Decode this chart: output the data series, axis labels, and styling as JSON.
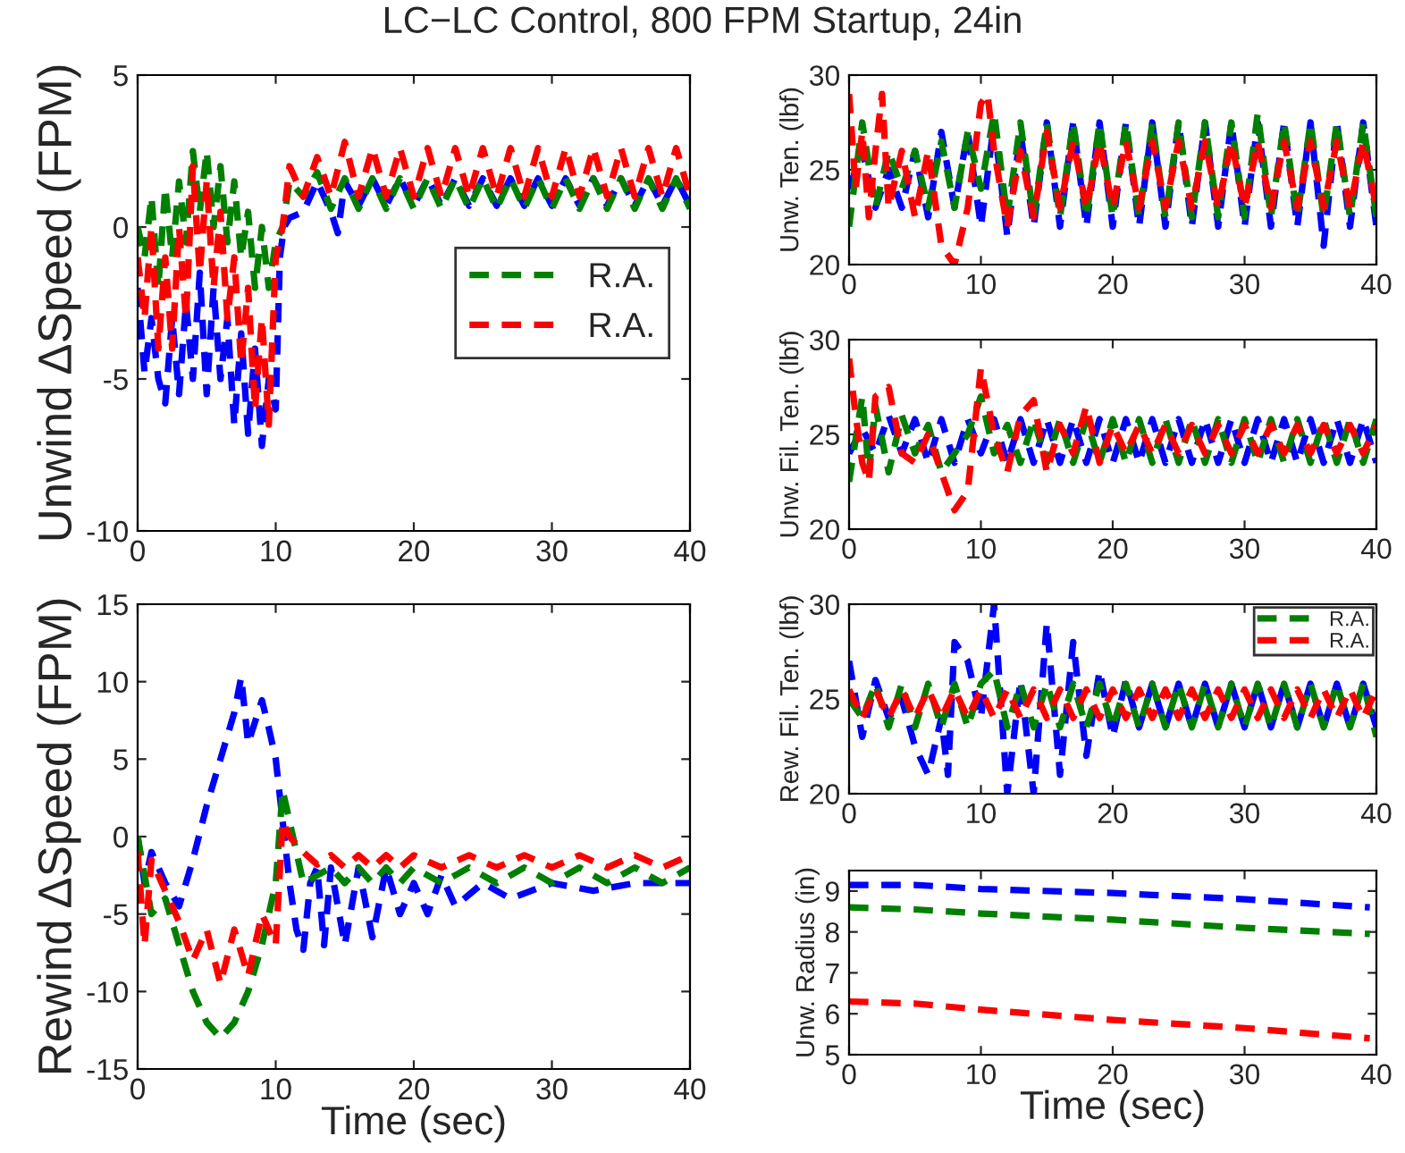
{
  "chart_data": [
    {
      "type": "line",
      "title": "LC−LC Control, 800 FPM Startup, 24in",
      "ylabel": "Unwind ΔSpeed (FPM)",
      "xlim": [
        0,
        40
      ],
      "xticks": [
        0,
        10,
        20,
        30,
        40
      ],
      "ylim": [
        -10,
        5
      ],
      "yticks": [
        -10,
        -5,
        0,
        5
      ],
      "grid": false,
      "legend": "right",
      "line_style": "dashed",
      "series": [
        {
          "color": "#0000ff",
          "x": [
            0,
            0.5,
            1,
            1.5,
            2,
            2.5,
            3,
            3.5,
            4,
            4.5,
            5,
            5.5,
            6,
            6.5,
            7,
            7.5,
            8,
            8.5,
            9,
            9.5,
            10,
            10.3,
            10.6,
            11,
            12,
            13,
            14,
            14.5,
            15,
            16,
            17,
            18,
            19,
            20,
            21,
            22,
            23,
            24,
            25,
            26,
            27,
            28,
            29,
            30,
            31,
            32,
            33,
            34,
            35,
            36,
            37,
            38,
            39,
            40
          ],
          "values": [
            -2,
            -4.8,
            -3,
            -5,
            -5.8,
            -3,
            -5.5,
            -2.5,
            -5,
            -1.5,
            -5.5,
            -2,
            -5,
            -3,
            -6.5,
            -3.5,
            -6.8,
            -4,
            -7.2,
            -5,
            -6,
            -1,
            0,
            0.3,
            0.5,
            1.5,
            0.5,
            -0.2,
            1.5,
            0.7,
            1.6,
            0.7,
            1.6,
            0.7,
            1.6,
            0.7,
            1.6,
            0.7,
            1.6,
            0.7,
            1.6,
            0.7,
            1.6,
            0.7,
            1.6,
            0.7,
            1.6,
            0.7,
            1.6,
            0.7,
            1.6,
            0.7,
            1.6,
            0.7
          ]
        },
        {
          "name": "R.A.",
          "color": "#008000",
          "x": [
            0,
            0.5,
            1,
            1.5,
            2,
            2.5,
            3,
            3.5,
            4,
            4.5,
            5,
            5.5,
            6,
            6.5,
            7,
            7.5,
            8,
            8.5,
            9,
            9.5,
            10,
            10.5,
            11,
            12,
            13,
            14,
            15,
            16,
            17,
            18,
            19,
            20,
            21,
            22,
            23,
            24,
            25,
            26,
            27,
            28,
            29,
            30,
            31,
            32,
            33,
            34,
            35,
            36,
            37,
            38,
            39,
            40
          ],
          "values": [
            0,
            -1,
            1,
            -2,
            1.3,
            -1,
            1.5,
            -0.5,
            2.5,
            0.5,
            2.5,
            0,
            2,
            -0.5,
            1.5,
            -1,
            0.5,
            -2,
            0,
            -2,
            -0.5,
            0,
            1.5,
            1,
            1.8,
            0.6,
            1.6,
            0.6,
            1.6,
            0.6,
            1.6,
            0.6,
            1.6,
            0.6,
            1.6,
            0.6,
            1.6,
            0.6,
            1.6,
            0.6,
            1.6,
            0.6,
            1.6,
            0.6,
            1.6,
            0.6,
            1.6,
            0.6,
            1.6,
            0.6,
            1.6,
            0.6
          ]
        },
        {
          "name": "R.A.",
          "color": "#ff0000",
          "x": [
            0,
            0.5,
            1,
            1.5,
            2,
            2.5,
            3,
            3.5,
            4,
            4.5,
            5,
            5.5,
            6,
            6.5,
            7,
            7.5,
            8,
            8.5,
            9,
            9.5,
            10,
            10.5,
            11,
            12,
            13,
            14,
            15,
            16,
            17,
            18,
            19,
            20,
            21,
            22,
            23,
            24,
            25,
            26,
            27,
            28,
            29,
            30,
            31,
            32,
            33,
            34,
            35,
            36,
            37,
            38,
            39,
            40
          ],
          "values": [
            -1,
            -3,
            0,
            -4,
            -1,
            -4,
            0,
            -3,
            2,
            -1.5,
            1.5,
            -2,
            0.5,
            -3,
            -1,
            -4.5,
            -2,
            -6,
            -3,
            -6.5,
            -1,
            0,
            2,
            1,
            2.3,
            1,
            2.8,
            1,
            2.6,
            1,
            2.6,
            1,
            2.6,
            1,
            2.6,
            1,
            2.6,
            1,
            2.6,
            1,
            2.6,
            1,
            2.6,
            1,
            2.6,
            1,
            2.6,
            1,
            2.6,
            1,
            2.6,
            1
          ]
        }
      ]
    },
    {
      "type": "line",
      "xlabel": "Time (sec)",
      "ylabel": "Rewind ΔSpeed (FPM)",
      "xlim": [
        0,
        40
      ],
      "xticks": [
        0,
        10,
        20,
        30,
        40
      ],
      "ylim": [
        -15,
        15
      ],
      "yticks": [
        -15,
        -10,
        -5,
        0,
        5,
        10,
        15
      ],
      "grid": false,
      "line_style": "dashed",
      "series": [
        {
          "color": "#0000ff",
          "x": [
            0,
            0.5,
            1,
            2,
            3,
            4,
            5,
            6,
            7,
            7.5,
            8,
            9,
            9.5,
            10,
            10.5,
            11,
            11.5,
            12,
            12.5,
            13,
            13.5,
            14,
            15,
            16,
            17,
            18,
            19,
            20,
            21,
            22,
            23,
            25,
            27,
            30,
            33,
            36,
            40
          ],
          "values": [
            0,
            -3,
            -1,
            -3,
            -4.5,
            -1.5,
            2,
            5,
            8,
            10.3,
            6,
            8.8,
            7,
            5,
            1,
            -3,
            -6,
            -7.3,
            -3,
            -2,
            -7,
            -2,
            -7,
            -2,
            -6.5,
            -2,
            -5,
            -3,
            -5,
            -2.5,
            -4.5,
            -3,
            -4,
            -3,
            -3.5,
            -3,
            -3
          ]
        },
        {
          "color": "#008000",
          "x": [
            0,
            1,
            2,
            3,
            4,
            5,
            6,
            7,
            8,
            9,
            10,
            10.5,
            11,
            12,
            13,
            14,
            15,
            16,
            17,
            18,
            19,
            20,
            22,
            24,
            26,
            28,
            30,
            32,
            34,
            36,
            38,
            40
          ],
          "values": [
            0,
            -5,
            -4,
            -7,
            -10,
            -12,
            -13,
            -12,
            -10,
            -7,
            -3,
            3,
            1,
            -3,
            -2.5,
            -2,
            -3,
            -2,
            -3,
            -2,
            -3,
            -2,
            -3,
            -2,
            -3,
            -2,
            -3,
            -2,
            -3,
            -2,
            -3,
            -2
          ]
        },
        {
          "color": "#ff0000",
          "x": [
            0,
            0.5,
            1,
            2,
            3,
            4,
            5,
            6,
            7,
            8,
            9,
            10,
            10.5,
            11,
            12,
            13,
            14,
            15,
            16,
            17,
            18,
            19,
            20,
            22,
            24,
            26,
            28,
            30,
            32,
            34,
            36,
            38,
            40
          ],
          "values": [
            -1,
            -7,
            -1.5,
            -3.5,
            -5.5,
            -8,
            -6,
            -9.5,
            -6,
            -9,
            -5,
            -7,
            1,
            0,
            -1,
            -1.8,
            -1.2,
            -2,
            -1.2,
            -2,
            -1.2,
            -2,
            -1.2,
            -2,
            -1.2,
            -2,
            -1.2,
            -2,
            -1.2,
            -2,
            -1.2,
            -2,
            -1.2
          ]
        }
      ]
    },
    {
      "type": "line",
      "ylabel": "Unw. Ten. (lbf)",
      "xlim": [
        0,
        40
      ],
      "xticks": [
        0,
        10,
        20,
        30,
        40
      ],
      "ylim": [
        20,
        30
      ],
      "yticks": [
        20,
        25,
        30
      ],
      "grid": false,
      "line_style": "dashed",
      "series": [
        {
          "color": "#0000ff",
          "x": [
            0,
            1,
            2,
            3,
            4,
            5,
            6,
            7,
            8,
            9,
            10,
            11,
            12,
            13,
            14,
            15,
            16,
            17,
            18,
            19,
            20,
            21,
            22,
            23,
            24,
            25,
            26,
            27,
            28,
            29,
            30,
            31,
            32,
            33,
            34,
            35,
            36,
            37,
            38,
            39,
            40
          ],
          "values": [
            24,
            26,
            23,
            25,
            23,
            26,
            22.5,
            27,
            23,
            27,
            22,
            27.5,
            21.5,
            27,
            22,
            27.5,
            22,
            27.5,
            22,
            27.5,
            22,
            27.5,
            22,
            27.5,
            22,
            27.5,
            22,
            27.5,
            22,
            27.5,
            22,
            27.5,
            22,
            27.5,
            22,
            27.5,
            21,
            27.5,
            22,
            27.5,
            22
          ]
        },
        {
          "color": "#008000",
          "x": [
            0,
            1,
            2,
            3,
            4,
            5,
            6,
            7,
            8,
            9,
            10,
            11,
            12,
            13,
            14,
            15,
            16,
            17,
            18,
            19,
            20,
            21,
            22,
            23,
            24,
            25,
            26,
            27,
            28,
            29,
            30,
            31,
            32,
            33,
            34,
            35,
            36,
            37,
            38,
            39,
            40
          ],
          "values": [
            22,
            27.5,
            23,
            26,
            24,
            26,
            23,
            26.5,
            23,
            27,
            24,
            28,
            22.5,
            27.5,
            22.5,
            27.5,
            22.5,
            27.5,
            22.5,
            27.5,
            22.5,
            27.5,
            22.5,
            27.5,
            22.5,
            27.5,
            22.5,
            27.5,
            22.5,
            27.5,
            22.5,
            28,
            22.5,
            27.5,
            22.5,
            27.5,
            22.5,
            27.5,
            22.5,
            27.5,
            22.5
          ]
        },
        {
          "color": "#ff0000",
          "x": [
            0,
            0.5,
            1,
            1.5,
            2,
            2.5,
            3,
            4,
            5,
            6,
            7,
            8,
            9,
            10,
            10.5,
            11,
            12,
            13,
            14,
            15,
            16,
            17,
            18,
            19,
            20,
            21,
            22,
            23,
            24,
            25,
            26,
            27,
            28,
            29,
            30,
            31,
            32,
            33,
            34,
            35,
            36,
            37,
            38,
            39,
            40
          ],
          "values": [
            29,
            24,
            27,
            22.5,
            26,
            29,
            23,
            26,
            22.5,
            26,
            21,
            20,
            23,
            28.5,
            29,
            26,
            22,
            26,
            22.5,
            27,
            23,
            26.5,
            23,
            26.5,
            23,
            26.5,
            23,
            26.5,
            23,
            26.5,
            23,
            26.5,
            23,
            26.5,
            23,
            26.5,
            23,
            26.5,
            23,
            26.5,
            23,
            26.5,
            23,
            26.5,
            23
          ]
        }
      ]
    },
    {
      "type": "line",
      "ylabel": "Unw. Fil. Ten. (lbf)",
      "xlim": [
        0,
        40
      ],
      "xticks": [
        0,
        10,
        20,
        30,
        40
      ],
      "ylim": [
        20,
        30
      ],
      "yticks": [
        20,
        25,
        30
      ],
      "grid": false,
      "line_style": "dashed",
      "series": [
        {
          "color": "#0000ff",
          "x": [
            0,
            1,
            2,
            3,
            4,
            5,
            6,
            7,
            8,
            9,
            10,
            11,
            12,
            13,
            14,
            15,
            16,
            17,
            18,
            19,
            20,
            21,
            22,
            23,
            24,
            25,
            26,
            27,
            28,
            29,
            30,
            31,
            32,
            33,
            34,
            35,
            36,
            37,
            38,
            39,
            40
          ],
          "values": [
            24,
            25.3,
            24,
            26,
            24,
            25.8,
            23.5,
            25.8,
            23.5,
            25.8,
            24,
            25.8,
            23.5,
            25.8,
            23.5,
            25.8,
            23.5,
            25.8,
            23.5,
            25.8,
            23.5,
            25.8,
            23.5,
            25.8,
            23.5,
            25.8,
            23.5,
            25.8,
            23.5,
            25.8,
            23.5,
            25.8,
            23.5,
            25.8,
            23.5,
            25.8,
            23.5,
            25.8,
            23.5,
            25.8,
            23.5
          ]
        },
        {
          "color": "#008000",
          "x": [
            0,
            1,
            1.5,
            2,
            3,
            4,
            5,
            6,
            7,
            8,
            9,
            10,
            11,
            12,
            13,
            14,
            15,
            16,
            17,
            18,
            19,
            20,
            21,
            22,
            23,
            24,
            25,
            26,
            27,
            28,
            29,
            30,
            31,
            32,
            33,
            34,
            35,
            36,
            37,
            38,
            39,
            40
          ],
          "values": [
            22.5,
            27,
            23,
            26.5,
            23,
            26,
            24,
            25.5,
            23,
            24,
            25,
            27,
            24,
            25.5,
            23.5,
            25.8,
            23.5,
            25.8,
            23.5,
            25.8,
            23.5,
            25.8,
            23.5,
            25.8,
            23.5,
            25.8,
            23.5,
            25.8,
            23.5,
            25.8,
            23.5,
            25.8,
            23.5,
            25.8,
            23.5,
            25.8,
            23.5,
            25.8,
            23.5,
            25.8,
            23.5,
            25.8
          ]
        },
        {
          "color": "#ff0000",
          "x": [
            0,
            0.5,
            1,
            1.5,
            2,
            3,
            4,
            5,
            6,
            7,
            8,
            9,
            10,
            11,
            12,
            13,
            14,
            15,
            16,
            17,
            18,
            19,
            20,
            21,
            22,
            23,
            24,
            25,
            26,
            27,
            28,
            29,
            30,
            31,
            32,
            33,
            34,
            35,
            36,
            37,
            38,
            39,
            40
          ],
          "values": [
            29,
            26,
            23.5,
            22.5,
            27,
            27.5,
            24,
            23.5,
            25,
            23,
            21,
            22,
            28.5,
            25,
            23,
            26,
            26.8,
            23,
            25.5,
            24,
            26.5,
            23.5,
            25.5,
            24,
            25.5,
            24,
            25.5,
            24,
            25.5,
            24,
            25.5,
            24,
            25.5,
            24,
            25.5,
            24,
            25.5,
            24,
            25.5,
            24,
            25.5,
            24,
            25.5
          ]
        }
      ]
    },
    {
      "type": "line",
      "ylabel": "Rew. Fil. Ten. (lbf)",
      "xlim": [
        0,
        40
      ],
      "xticks": [
        0,
        10,
        20,
        30,
        40
      ],
      "ylim": [
        20,
        30
      ],
      "yticks": [
        20,
        25,
        30
      ],
      "grid": false,
      "legend": "upper right",
      "line_style": "dashed",
      "series": [
        {
          "color": "#0000ff",
          "x": [
            0,
            1,
            2,
            3,
            4,
            5,
            6,
            7,
            7.5,
            8,
            9,
            10,
            11,
            12,
            13,
            14,
            15,
            16,
            17,
            18,
            19,
            20,
            21,
            22,
            23,
            24,
            25,
            26,
            27,
            28,
            29,
            30,
            31,
            32,
            33,
            34,
            35,
            36,
            37,
            38,
            39,
            40
          ],
          "values": [
            27,
            23,
            26,
            24,
            25,
            22.5,
            21,
            24,
            21,
            28,
            27,
            24,
            30,
            20,
            26,
            20,
            29,
            21,
            28,
            22,
            26.5,
            23,
            26,
            23.5,
            25.8,
            23.5,
            25.8,
            23.5,
            25.8,
            23.5,
            25.8,
            23.5,
            25.8,
            23.5,
            25.8,
            23.5,
            25.8,
            23.5,
            25.8,
            23.5,
            25.8,
            23.5
          ]
        },
        {
          "name": "R.A.",
          "color": "#008000",
          "x": [
            0,
            1,
            2,
            3,
            4,
            5,
            6,
            7,
            8,
            9,
            10,
            11,
            12,
            13,
            14,
            15,
            16,
            17,
            18,
            19,
            20,
            21,
            22,
            23,
            24,
            25,
            26,
            27,
            28,
            29,
            30,
            31,
            32,
            33,
            34,
            35,
            36,
            37,
            38,
            39,
            40
          ],
          "values": [
            25,
            24,
            25.8,
            23.5,
            25.8,
            23.5,
            25.8,
            23.5,
            25.8,
            23.5,
            25.8,
            26.5,
            23.5,
            25.8,
            23.5,
            25.8,
            23.5,
            25.8,
            23.5,
            25.8,
            23.5,
            25.8,
            23.5,
            25.8,
            23.5,
            25.8,
            23.5,
            25.8,
            23.5,
            25.8,
            23.5,
            25.8,
            23.5,
            25.8,
            23.5,
            25.8,
            23.5,
            25.8,
            23.5,
            25.8,
            23
          ]
        },
        {
          "name": "R.A.",
          "color": "#ff0000",
          "x": [
            0,
            1,
            2,
            3,
            4,
            5,
            6,
            7,
            8,
            9,
            10,
            11,
            12,
            13,
            14,
            15,
            16,
            17,
            18,
            19,
            20,
            21,
            22,
            23,
            24,
            25,
            26,
            27,
            28,
            29,
            30,
            31,
            32,
            33,
            34,
            35,
            36,
            37,
            38,
            39,
            40
          ],
          "values": [
            25.5,
            24,
            25.5,
            24,
            25.5,
            24,
            25.5,
            24,
            25.5,
            24,
            25.5,
            24,
            25.5,
            24,
            25.5,
            24,
            25.5,
            24,
            25.5,
            24,
            25.5,
            24,
            25.5,
            24,
            25.5,
            24,
            25.5,
            24,
            25.5,
            24,
            25.5,
            24,
            25.5,
            24,
            25.5,
            24,
            25.5,
            24,
            25.5,
            24,
            25.5
          ]
        }
      ]
    },
    {
      "type": "line",
      "xlabel": "Time (sec)",
      "ylabel": "Unw. Radius (in)",
      "xlim": [
        0,
        40
      ],
      "xticks": [
        0,
        10,
        20,
        30,
        40
      ],
      "ylim": [
        5,
        9.5
      ],
      "yticks": [
        5,
        6,
        7,
        8,
        9
      ],
      "grid": false,
      "line_style": "dashed",
      "series": [
        {
          "color": "#0000ff",
          "x": [
            0,
            5,
            10,
            20,
            30,
            39.5
          ],
          "values": [
            9.15,
            9.15,
            9.05,
            8.95,
            8.8,
            8.6
          ]
        },
        {
          "color": "#008000",
          "x": [
            0,
            5,
            10,
            20,
            30,
            39.5
          ],
          "values": [
            8.6,
            8.55,
            8.45,
            8.3,
            8.1,
            7.95
          ]
        },
        {
          "color": "#ff0000",
          "x": [
            0,
            5,
            10,
            20,
            30,
            39.5
          ],
          "values": [
            6.3,
            6.25,
            6.1,
            5.85,
            5.65,
            5.4
          ]
        }
      ]
    }
  ]
}
